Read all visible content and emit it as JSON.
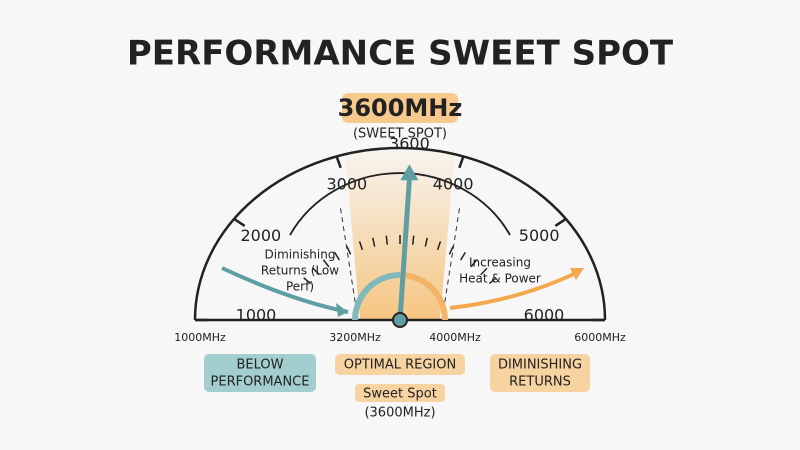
{
  "title": "PERFORMANCE SWEET SPOT",
  "headline": {
    "value": "3600MHz",
    "subtitle": "(SWEET SPOT)"
  },
  "gauge": {
    "min": 1000,
    "max": 6000,
    "ticks": [
      1000,
      2000,
      3000,
      4000,
      5000,
      6000
    ],
    "needle": 3600,
    "left_note": [
      "Diminishing",
      "Returns (Low",
      "Perf)"
    ],
    "right_note": [
      "Increasing",
      "Heat & Power"
    ],
    "base_labels": [
      "1000MHz",
      "3200MHz",
      "4000MHz",
      "6000MHz"
    ]
  },
  "regions": [
    {
      "label": [
        "BELOW",
        "PERFORMANCE"
      ],
      "color": "#8cc3c4"
    },
    {
      "label": [
        "OPTIMAL REGION"
      ],
      "color": "#f8c98c"
    },
    {
      "label": [
        "DIMINISHING",
        "RETURNS"
      ],
      "color": "#f8c98c"
    }
  ],
  "footnote": [
    "Sweet Spot",
    "(3600MHz)"
  ]
}
